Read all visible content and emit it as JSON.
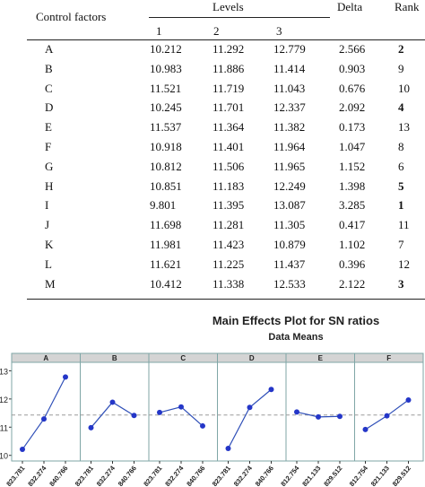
{
  "table": {
    "header": {
      "control_factors": "Control factors",
      "levels": "Levels",
      "level_cols": [
        "1",
        "2",
        "3"
      ],
      "delta": "Delta",
      "rank": "Rank"
    },
    "rows": [
      {
        "factor": "A",
        "l1": "10.212",
        "l2": "11.292",
        "l3": "12.779",
        "delta": "2.566",
        "rank": "2",
        "bold": true
      },
      {
        "factor": "B",
        "l1": "10.983",
        "l2": "11.886",
        "l3": "11.414",
        "delta": "0.903",
        "rank": "9",
        "bold": false
      },
      {
        "factor": "C",
        "l1": "11.521",
        "l2": "11.719",
        "l3": "11.043",
        "delta": "0.676",
        "rank": "10",
        "bold": false
      },
      {
        "factor": "D",
        "l1": "10.245",
        "l2": "11.701",
        "l3": "12.337",
        "delta": "2.092",
        "rank": "4",
        "bold": true
      },
      {
        "factor": "E",
        "l1": "11.537",
        "l2": "11.364",
        "l3": "11.382",
        "delta": "0.173",
        "rank": "13",
        "bold": false
      },
      {
        "factor": "F",
        "l1": "10.918",
        "l2": "11.401",
        "l3": "11.964",
        "delta": "1.047",
        "rank": "8",
        "bold": false
      },
      {
        "factor": "G",
        "l1": "10.812",
        "l2": "11.506",
        "l3": "11.965",
        "delta": "1.152",
        "rank": "6",
        "bold": false
      },
      {
        "factor": "H",
        "l1": "10.851",
        "l2": "11.183",
        "l3": "12.249",
        "delta": "1.398",
        "rank": "5",
        "bold": true
      },
      {
        "factor": "I",
        "l1": "9.801",
        "l2": "11.395",
        "l3": "13.087",
        "delta": "3.285",
        "rank": "1",
        "bold": true
      },
      {
        "factor": "J",
        "l1": "11.698",
        "l2": "11.281",
        "l3": "11.305",
        "delta": "0.417",
        "rank": "11",
        "bold": false
      },
      {
        "factor": "K",
        "l1": "11.981",
        "l2": "11.423",
        "l3": "10.879",
        "delta": "1.102",
        "rank": "7",
        "bold": false
      },
      {
        "factor": "L",
        "l1": "11.621",
        "l2": "11.225",
        "l3": "11.437",
        "delta": "0.396",
        "rank": "12",
        "bold": false
      },
      {
        "factor": "M",
        "l1": "10.412",
        "l2": "11.338",
        "l3": "12.533",
        "delta": "2.122",
        "rank": "3",
        "bold": true
      }
    ]
  },
  "chart_data": {
    "type": "line",
    "title": "Main Effects Plot for SN ratios",
    "subtitle": "Data Means",
    "ylim": [
      9.8,
      13.3
    ],
    "yticks": [
      "13",
      "12",
      "11",
      "10"
    ],
    "mean_line": 11.43,
    "colors": {
      "line": "#2f4fb8",
      "marker": "#2436c8",
      "mean": "#9a9a9a",
      "panel_header": "#d4d4d4",
      "frame": "#7fa6a6"
    },
    "panels": [
      {
        "name": "A",
        "x": [
          "823.781",
          "832.274",
          "840.766"
        ],
        "values": [
          10.212,
          11.292,
          12.779
        ]
      },
      {
        "name": "B",
        "x": [
          "823.781",
          "832.274",
          "840.766"
        ],
        "values": [
          10.983,
          11.886,
          11.414
        ]
      },
      {
        "name": "C",
        "x": [
          "823.781",
          "832.274",
          "840.766"
        ],
        "values": [
          11.521,
          11.719,
          11.043
        ]
      },
      {
        "name": "D",
        "x": [
          "823.781",
          "832.274",
          "840.766"
        ],
        "values": [
          10.245,
          11.701,
          12.337
        ]
      },
      {
        "name": "E",
        "x": [
          "812.754",
          "821.133",
          "829.512"
        ],
        "values": [
          11.537,
          11.364,
          11.382
        ]
      },
      {
        "name": "F",
        "x": [
          "812.754",
          "821.133",
          "829.512"
        ],
        "values": [
          10.918,
          11.401,
          11.964
        ]
      }
    ]
  }
}
